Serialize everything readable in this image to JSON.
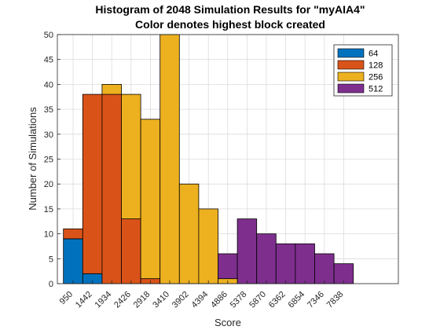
{
  "chart_data": {
    "type": "bar",
    "title": [
      "Histogram of 2048 Simulation Results for \"myAIA4\"",
      "Color denotes highest block created"
    ],
    "xlabel": "Score",
    "ylabel": "Number of Simulations",
    "ylim": [
      0,
      50
    ],
    "yticks": [
      0,
      5,
      10,
      15,
      20,
      25,
      30,
      35,
      40,
      45,
      50
    ],
    "categories": [
      "950",
      "1442",
      "1934",
      "2426",
      "2918",
      "3410",
      "3902",
      "4394",
      "4886",
      "5378",
      "5870",
      "6362",
      "6854",
      "7346",
      "7838"
    ],
    "stacked": true,
    "grid": true,
    "legend_position": "top-right",
    "series": [
      {
        "name": "64",
        "color": "#0072BD",
        "values": [
          9,
          2,
          0,
          0,
          0,
          0,
          0,
          0,
          0,
          0,
          0,
          0,
          0,
          0,
          0
        ]
      },
      {
        "name": "128",
        "color": "#D95319",
        "values": [
          2,
          36,
          38,
          13,
          1,
          0,
          0,
          0,
          0,
          0,
          0,
          0,
          0,
          0,
          0
        ]
      },
      {
        "name": "256",
        "color": "#EDB120",
        "values": [
          0,
          0,
          2,
          25,
          32,
          50,
          20,
          15,
          1,
          0,
          0,
          0,
          0,
          0,
          0
        ]
      },
      {
        "name": "512",
        "color": "#7E2F8E",
        "values": [
          0,
          0,
          0,
          0,
          0,
          0,
          0,
          0,
          5,
          13,
          10,
          8,
          8,
          6,
          4
        ]
      }
    ]
  }
}
